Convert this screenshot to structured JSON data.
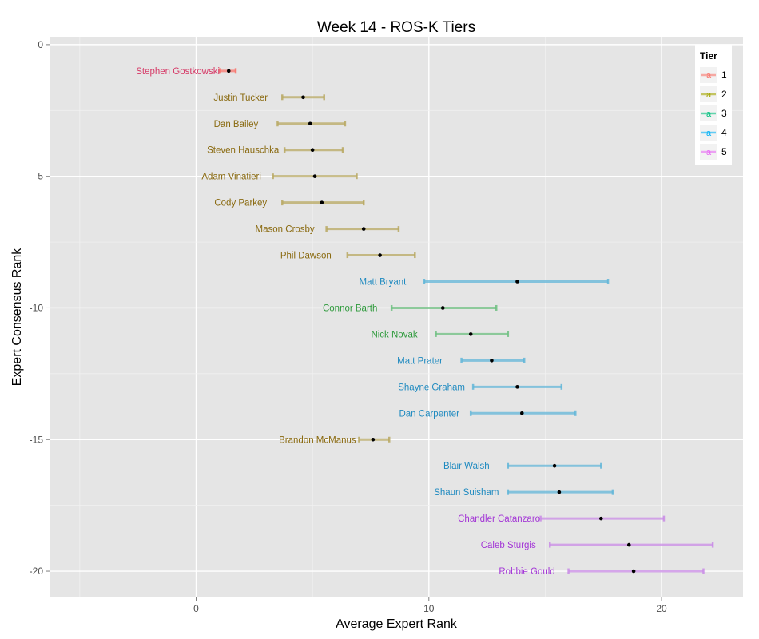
{
  "chart_data": {
    "type": "errorbar",
    "title": "Week 14 - ROS-K Tiers",
    "xlabel": "Average Expert Rank",
    "ylabel": "Expert Consensus Rank",
    "xlim": [
      -6.3,
      23.5
    ],
    "ylim": [
      -21,
      0.3
    ],
    "xticks": [
      0,
      10,
      20
    ],
    "yticks": [
      0,
      -5,
      -10,
      -15,
      -20
    ],
    "grid": true,
    "legend": {
      "title": "Tier",
      "position": "top-right",
      "glyph": "a",
      "entries": [
        {
          "label": "1",
          "color": "#F8766D"
        },
        {
          "label": "2",
          "color": "#A3A500"
        },
        {
          "label": "3",
          "color": "#00BF7D"
        },
        {
          "label": "4",
          "color": "#00B0F6"
        },
        {
          "label": "5",
          "color": "#E76BF3"
        }
      ]
    },
    "tier_colors": {
      "1": {
        "bar": "#F8766D",
        "text": "#D63A67"
      },
      "2": {
        "bar": "#B8A862",
        "text": "#8A6A10"
      },
      "3": {
        "bar": "#6DBF80",
        "text": "#2E9A3C"
      },
      "4": {
        "bar": "#62B6D8",
        "text": "#1F8AC0"
      },
      "5": {
        "bar": "#C98BE6",
        "text": "#A336D6"
      }
    },
    "points": [
      {
        "name": "Stephen Gostkowski",
        "rank": -1,
        "avg": 1.4,
        "min": 1.0,
        "max": 1.7,
        "tier": "1"
      },
      {
        "name": "Justin Tucker",
        "rank": -2,
        "avg": 4.6,
        "min": 3.7,
        "max": 5.5,
        "tier": "2"
      },
      {
        "name": "Dan Bailey",
        "rank": -3,
        "avg": 4.9,
        "min": 3.5,
        "max": 6.4,
        "tier": "2"
      },
      {
        "name": "Steven Hauschka",
        "rank": -4,
        "avg": 5.0,
        "min": 3.8,
        "max": 6.3,
        "tier": "2"
      },
      {
        "name": "Adam Vinatieri",
        "rank": -5,
        "avg": 5.1,
        "min": 3.3,
        "max": 6.9,
        "tier": "2"
      },
      {
        "name": "Cody Parkey",
        "rank": -6,
        "avg": 5.4,
        "min": 3.7,
        "max": 7.2,
        "tier": "2"
      },
      {
        "name": "Mason Crosby",
        "rank": -7,
        "avg": 7.2,
        "min": 5.6,
        "max": 8.7,
        "tier": "2"
      },
      {
        "name": "Phil Dawson",
        "rank": -8,
        "avg": 7.9,
        "min": 6.5,
        "max": 9.4,
        "tier": "2"
      },
      {
        "name": "Matt Bryant",
        "rank": -9,
        "avg": 13.8,
        "min": 9.8,
        "max": 17.7,
        "tier": "4"
      },
      {
        "name": "Connor Barth",
        "rank": -10,
        "avg": 10.6,
        "min": 8.4,
        "max": 12.9,
        "tier": "3"
      },
      {
        "name": "Nick Novak",
        "rank": -11,
        "avg": 11.8,
        "min": 10.3,
        "max": 13.4,
        "tier": "3"
      },
      {
        "name": "Matt Prater",
        "rank": -12,
        "avg": 12.7,
        "min": 11.4,
        "max": 14.1,
        "tier": "4"
      },
      {
        "name": "Shayne Graham",
        "rank": -13,
        "avg": 13.8,
        "min": 11.9,
        "max": 15.7,
        "tier": "4"
      },
      {
        "name": "Dan Carpenter",
        "rank": -14,
        "avg": 14.0,
        "min": 11.8,
        "max": 16.3,
        "tier": "4"
      },
      {
        "name": "Brandon McManus",
        "rank": -15,
        "avg": 7.6,
        "min": 7.0,
        "max": 8.3,
        "tier": "2"
      },
      {
        "name": "Blair Walsh",
        "rank": -16,
        "avg": 15.4,
        "min": 13.4,
        "max": 17.4,
        "tier": "4"
      },
      {
        "name": "Shaun Suisham",
        "rank": -17,
        "avg": 15.6,
        "min": 13.4,
        "max": 17.9,
        "tier": "4"
      },
      {
        "name": "Chandler Catanzaro",
        "rank": -18,
        "avg": 17.4,
        "min": 14.8,
        "max": 20.1,
        "tier": "5"
      },
      {
        "name": "Caleb Sturgis",
        "rank": -19,
        "avg": 18.6,
        "min": 15.2,
        "max": 22.2,
        "tier": "5"
      },
      {
        "name": "Robbie Gould",
        "rank": -20,
        "avg": 18.8,
        "min": 16.0,
        "max": 21.8,
        "tier": "5"
      }
    ]
  }
}
